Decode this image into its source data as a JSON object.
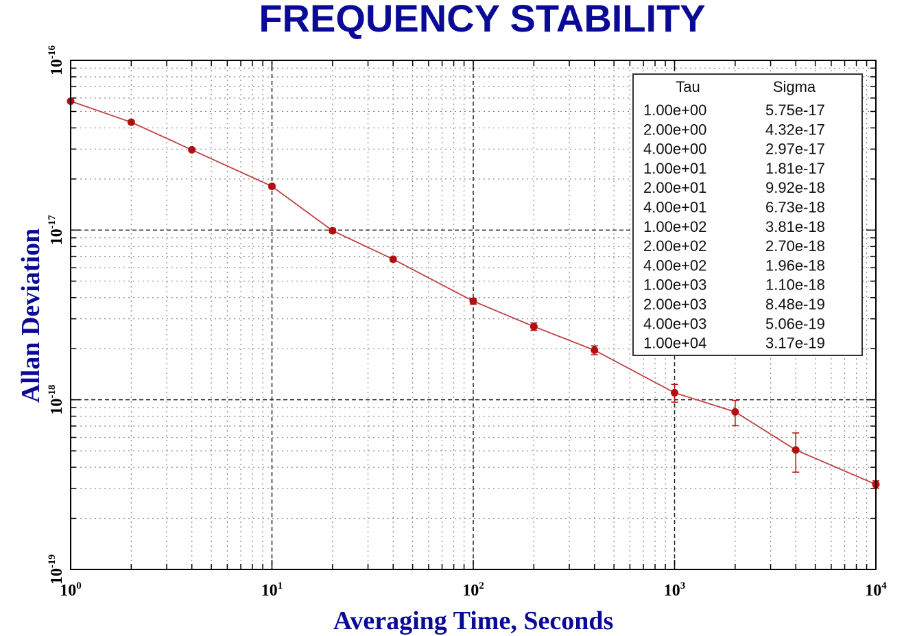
{
  "chart_data": {
    "type": "line",
    "title": "FREQUENCY STABILITY",
    "xlabel": "Averaging Time, Seconds",
    "ylabel": "Allan Deviation",
    "xscale": "log",
    "yscale": "log",
    "xlim": [
      1,
      10000
    ],
    "ylim": [
      1e-19,
      1e-16
    ],
    "x_ticks": [
      {
        "base": "10",
        "exp": "0"
      },
      {
        "base": "10",
        "exp": "1"
      },
      {
        "base": "10",
        "exp": "2"
      },
      {
        "base": "10",
        "exp": "3"
      },
      {
        "base": "10",
        "exp": "4"
      }
    ],
    "y_ticks": [
      {
        "base": "10",
        "exp": "-16"
      },
      {
        "base": "10",
        "exp": "-17"
      },
      {
        "base": "10",
        "exp": "-18"
      },
      {
        "base": "10",
        "exp": "-19"
      }
    ],
    "grid": true,
    "series_color": "#b01010",
    "line_color": "#c04040",
    "x": [
      1,
      2,
      4,
      10,
      20,
      40,
      100,
      200,
      400,
      1000,
      2000,
      4000,
      10000
    ],
    "y": [
      5.75e-17,
      4.32e-17,
      2.97e-17,
      1.81e-17,
      9.92e-18,
      6.73e-18,
      3.81e-18,
      2.7e-18,
      1.96e-18,
      1.1e-18,
      8.48e-19,
      5.06e-19,
      3.17e-19
    ],
    "error_fraction": [
      0.01,
      0.02,
      0.02,
      0.03,
      0.03,
      0.03,
      0.04,
      0.05,
      0.06,
      0.12,
      0.17,
      0.26,
      0.05
    ],
    "legend": {
      "placement": "top-right",
      "headers": [
        "Tau",
        "Sigma"
      ],
      "rows": [
        [
          "1.00e+00",
          "5.75e-17"
        ],
        [
          "2.00e+00",
          "4.32e-17"
        ],
        [
          "4.00e+00",
          "2.97e-17"
        ],
        [
          "1.00e+01",
          "1.81e-17"
        ],
        [
          "2.00e+01",
          "9.92e-18"
        ],
        [
          "4.00e+01",
          "6.73e-18"
        ],
        [
          "1.00e+02",
          "3.81e-18"
        ],
        [
          "2.00e+02",
          "2.70e-18"
        ],
        [
          "4.00e+02",
          "1.96e-18"
        ],
        [
          "1.00e+03",
          "1.10e-18"
        ],
        [
          "2.00e+03",
          "8.48e-19"
        ],
        [
          "4.00e+03",
          "5.06e-19"
        ],
        [
          "1.00e+04",
          "3.17e-19"
        ]
      ]
    }
  }
}
